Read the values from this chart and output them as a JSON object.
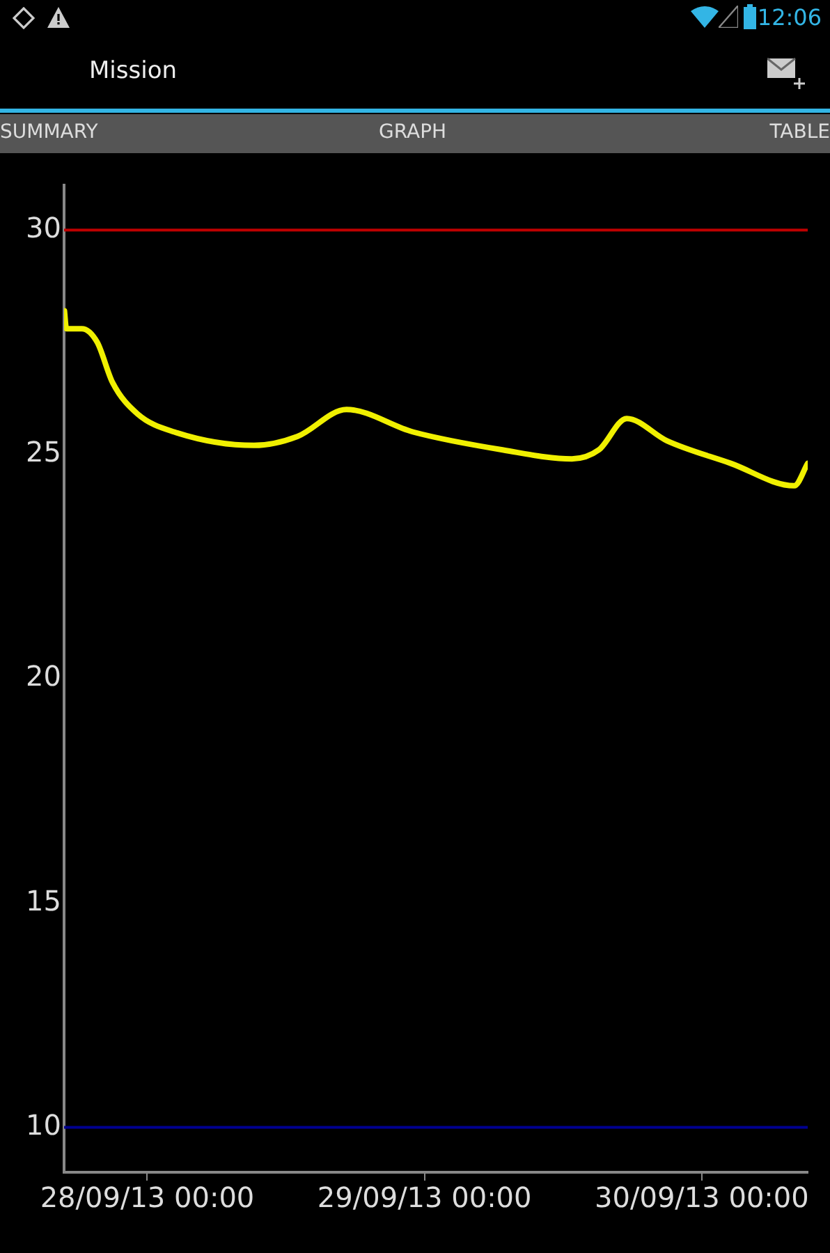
{
  "chart_data": {
    "type": "line",
    "annotations": [
      "12:06",
      "Mission",
      "SUMMARY",
      "GRAPH",
      "TABLE"
    ],
    "x": [
      "--09-27T16:50",
      "--09-27T17:00",
      "--09-27T18:20",
      "--09-27T19:40",
      "--09-27T21:00",
      "--09-27T23:10",
      "--09-28T02:20",
      "--09-28T09:15",
      "--09-28T13:00",
      "--09-28T17:15",
      "--09-28T23:00",
      "--09-29T06:45",
      "--09-29T12:45",
      "--09-29T15:05",
      "--09-29T17:30",
      "--09-29T21:00",
      "--09-30T02:30",
      "--09-30T08:00",
      "--09-30T09:10"
    ],
    "series": [
      {
        "color": "#f0f000",
        "values": [
          28.2,
          27.8,
          27.8,
          27.5,
          26.6,
          25.9,
          25.5,
          25.2,
          25.4,
          26.0,
          25.5,
          25.1,
          24.9,
          25.1,
          25.8,
          25.3,
          24.8,
          24.3,
          24.8
        ]
      }
    ],
    "xlim": [
      "--09-27T16:48",
      "--09-30T09:10"
    ],
    "xticks": [
      {
        "value": "--09-28T00:00",
        "label": "28/09/13 00:00"
      },
      {
        "value": "--09-29T00:00",
        "label": "29/09/13 00:00"
      },
      {
        "value": "--09-30T00:00",
        "label": "30/09/13 00:00"
      }
    ],
    "ylim": [
      9,
      31
    ],
    "yticks": [
      10,
      15,
      20,
      25,
      30
    ],
    "ref_lines": [
      {
        "axis": "y",
        "value": 30,
        "color": "#c00000"
      },
      {
        "axis": "y",
        "value": 10,
        "color": "#000090"
      }
    ],
    "grid": false,
    "legend": false,
    "marker": "none",
    "line_style": "solid"
  }
}
